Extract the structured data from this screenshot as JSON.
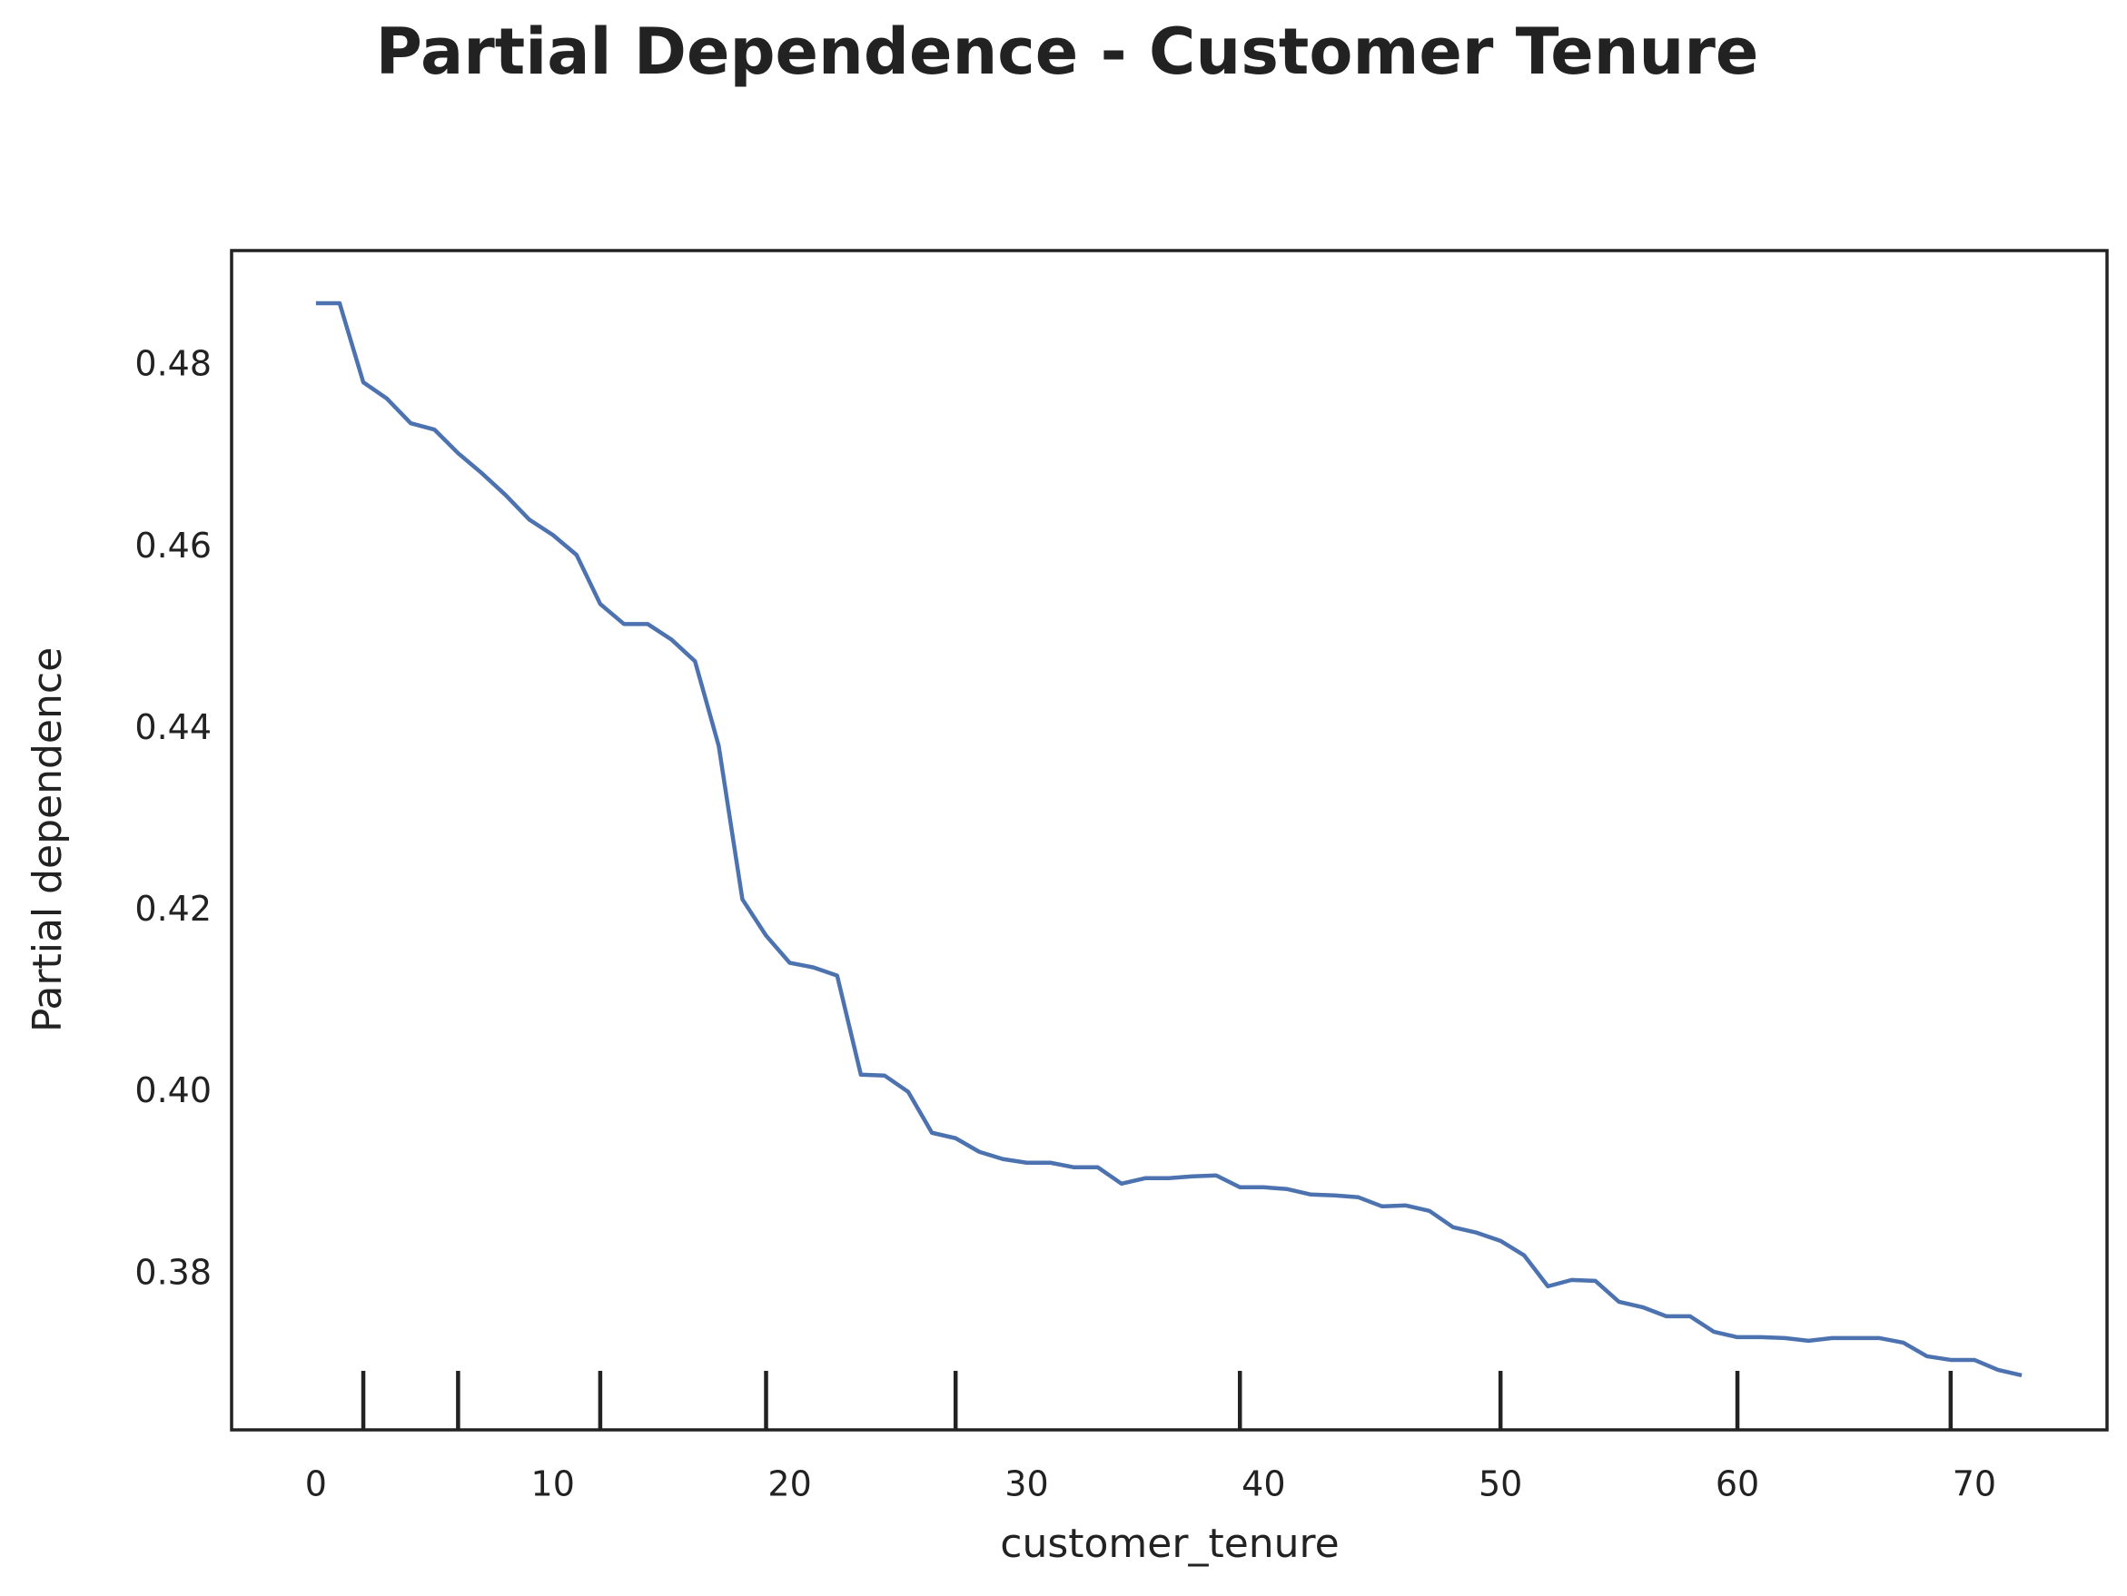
{
  "chart_data": {
    "type": "line",
    "title": "Partial Dependence - Customer Tenure",
    "x_label": "customer_tenure",
    "y_label": "Partial dependence",
    "x": [
      0,
      1,
      2,
      3,
      4,
      5,
      6,
      7,
      8,
      9,
      10,
      11,
      12,
      13,
      14,
      15,
      16,
      17,
      18,
      19,
      20,
      21,
      22,
      23,
      24,
      25,
      26,
      27,
      28,
      29,
      30,
      31,
      32,
      33,
      34,
      35,
      36,
      37,
      38,
      39,
      40,
      41,
      42,
      43,
      44,
      45,
      46,
      47,
      48,
      49,
      50,
      51,
      52,
      53,
      54,
      55,
      56,
      57,
      58,
      59,
      60,
      61,
      62,
      63,
      64,
      65,
      66,
      67,
      68,
      69,
      70,
      71,
      72
    ],
    "series": [
      {
        "color": "#4c72b0",
        "values": [
          0.4869,
          0.4869,
          0.4782,
          0.4764,
          0.4737,
          0.473,
          0.4704,
          0.4682,
          0.4658,
          0.4631,
          0.4614,
          0.4592,
          0.4538,
          0.4516,
          0.4516,
          0.4499,
          0.4475,
          0.4382,
          0.4213,
          0.4173,
          0.4143,
          0.4138,
          0.4129,
          0.402,
          0.4019,
          0.4001,
          0.3956,
          0.395,
          0.3935,
          0.3927,
          0.3923,
          0.3923,
          0.3918,
          0.3918,
          0.39,
          0.3906,
          0.3906,
          0.3908,
          0.3909,
          0.3896,
          0.3896,
          0.3894,
          0.3888,
          0.3887,
          0.3885,
          0.3875,
          0.3876,
          0.387,
          0.3852,
          0.3846,
          0.3837,
          0.3821,
          0.3787,
          0.3794,
          0.3793,
          0.377,
          0.3764,
          0.3754,
          0.3754,
          0.3737,
          0.3731,
          0.3731,
          0.373,
          0.3727,
          0.373,
          0.373,
          0.373,
          0.3725,
          0.371,
          0.3706,
          0.3706,
          0.3695,
          0.3689
        ]
      }
    ],
    "deciles": [
      2,
      6,
      12,
      19,
      27,
      39,
      50,
      60,
      69
    ],
    "deciles_color": "#222222",
    "xlim": [
      -3.56,
      75.6
    ],
    "ylim": [
      0.3629,
      0.4927
    ],
    "xticks": [
      0,
      10,
      20,
      30,
      40,
      50,
      60,
      70
    ],
    "yticks": [
      0.38,
      {
        "value": 0.4,
        "label": "0.40"
      },
      0.42,
      0.44,
      0.46,
      0.48
    ],
    "grid": false
  }
}
